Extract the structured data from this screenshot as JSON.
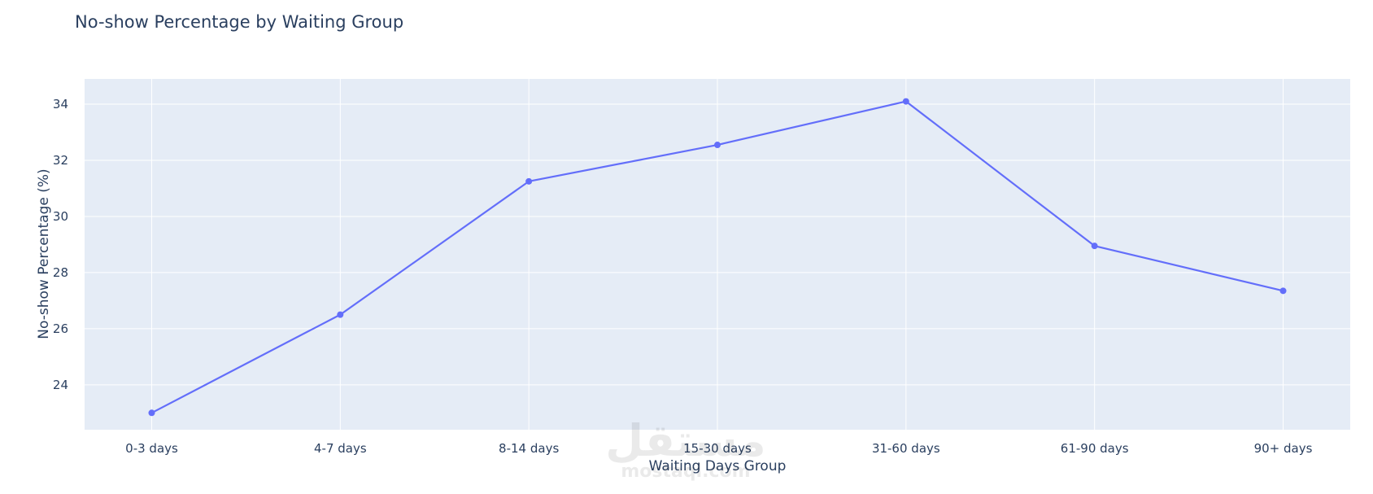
{
  "chart_data": {
    "type": "line",
    "title": "No-show Percentage by Waiting Group",
    "xlabel": "Waiting Days Group",
    "ylabel": "No-show Percentage (%)",
    "categories": [
      "0-3 days",
      "4-7 days",
      "8-14 days",
      "15-30 days",
      "31-60 days",
      "61-90 days",
      "90+ days"
    ],
    "series": [
      {
        "values": [
          23.0,
          26.5,
          31.25,
          32.55,
          34.1,
          28.95,
          27.35
        ],
        "color": "#636efa"
      }
    ],
    "ylim": [
      22.4,
      34.9
    ],
    "yticks": [
      24,
      26,
      28,
      30,
      32,
      34
    ],
    "grid": true,
    "plot_background": "#e5ecf6",
    "grid_color": "#ffffff"
  },
  "watermark": {
    "main": "مستقل",
    "sub": "mostaql.com"
  }
}
